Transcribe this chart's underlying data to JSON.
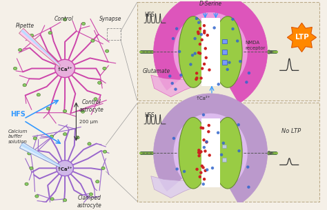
{
  "bg_color": "#f5f0e8",
  "border_color": "#c8b898",
  "labels": {
    "pipette": "Pipette",
    "control": "Control",
    "synapse": "Synapse",
    "control_astrocyte": "Control\nastrocyte",
    "hfs": "HFS",
    "calcium_buffer": "Calcium\nbuffer\nsolution",
    "distance": "200 μm",
    "clamped_astrocyte": "Clamped\nastrocyte",
    "d_serine": "D-Serine",
    "nmda_receptor": "NMDA\nreceptor",
    "ltp": "LTP",
    "glutamate": "Glutamate",
    "ca2_up": "↑Ca²⁺",
    "hfs2": "HFS",
    "no_ltp": "No LTP"
  },
  "colors": {
    "astrocyte_pink": "#cc44aa",
    "astrocyte_purple": "#9966cc",
    "astrocyte_light_purple": "#ccaadd",
    "green_dendrite": "#88bb44",
    "red_dots": "#cc2222",
    "blue_dots": "#3366cc",
    "arrow_blue": "#3399ff",
    "ltp_orange": "#ff8800",
    "text_dark": "#333333",
    "text_blue": "#3399ff",
    "dashed_line": "#555555"
  }
}
